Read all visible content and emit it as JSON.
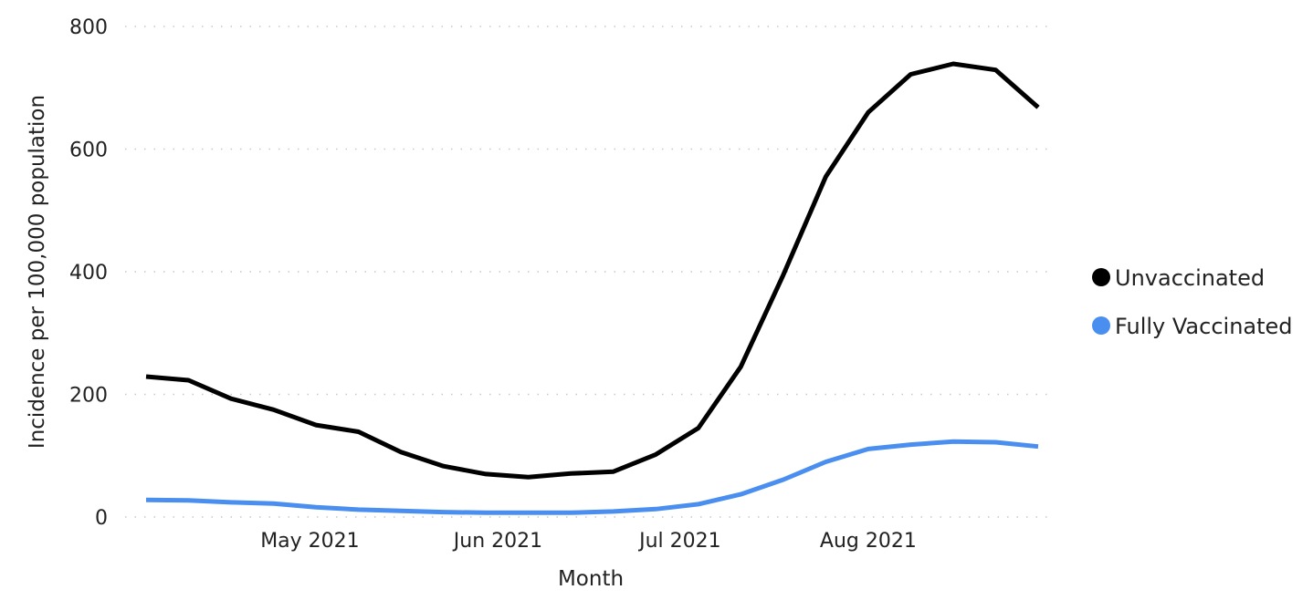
{
  "chart_data": {
    "type": "line",
    "xlabel": "Month",
    "ylabel": "Incidence per 100,000 population",
    "ylim": [
      0,
      800
    ],
    "yticks": [
      0,
      200,
      400,
      600,
      800
    ],
    "y_tick_labels": [
      "0",
      "200",
      "400",
      "600",
      "800"
    ],
    "grid": true,
    "x_tick_labels": [
      {
        "label": "May 2021",
        "date": "2021-05-01"
      },
      {
        "label": "Jun 2021",
        "date": "2021-06-01"
      },
      {
        "label": "Jul 2021",
        "date": "2021-07-01"
      },
      {
        "label": "Aug 2021",
        "date": "2021-08-01"
      }
    ],
    "x": [
      "2021-04-04",
      "2021-04-11",
      "2021-04-18",
      "2021-04-25",
      "2021-05-02",
      "2021-05-09",
      "2021-05-16",
      "2021-05-23",
      "2021-05-30",
      "2021-06-06",
      "2021-06-13",
      "2021-06-20",
      "2021-06-27",
      "2021-07-04",
      "2021-07-11",
      "2021-07-18",
      "2021-07-25",
      "2021-08-01",
      "2021-08-08",
      "2021-08-15",
      "2021-08-22",
      "2021-08-29"
    ],
    "series": [
      {
        "name": "Unvaccinated",
        "color": "#000000",
        "values": [
          229,
          223,
          193,
          175,
          150,
          139,
          106,
          83,
          70,
          65,
          71,
          74,
          102,
          145,
          245,
          395,
          555,
          660,
          722,
          739,
          729,
          668
        ]
      },
      {
        "name": "Fully Vaccinated",
        "color": "#4a8ff0",
        "values": [
          28,
          27,
          24,
          22,
          16,
          12,
          10,
          8,
          7,
          7,
          7,
          9,
          13,
          21,
          37,
          61,
          90,
          111,
          118,
          123,
          122,
          115
        ]
      }
    ],
    "legend_position": "right"
  }
}
